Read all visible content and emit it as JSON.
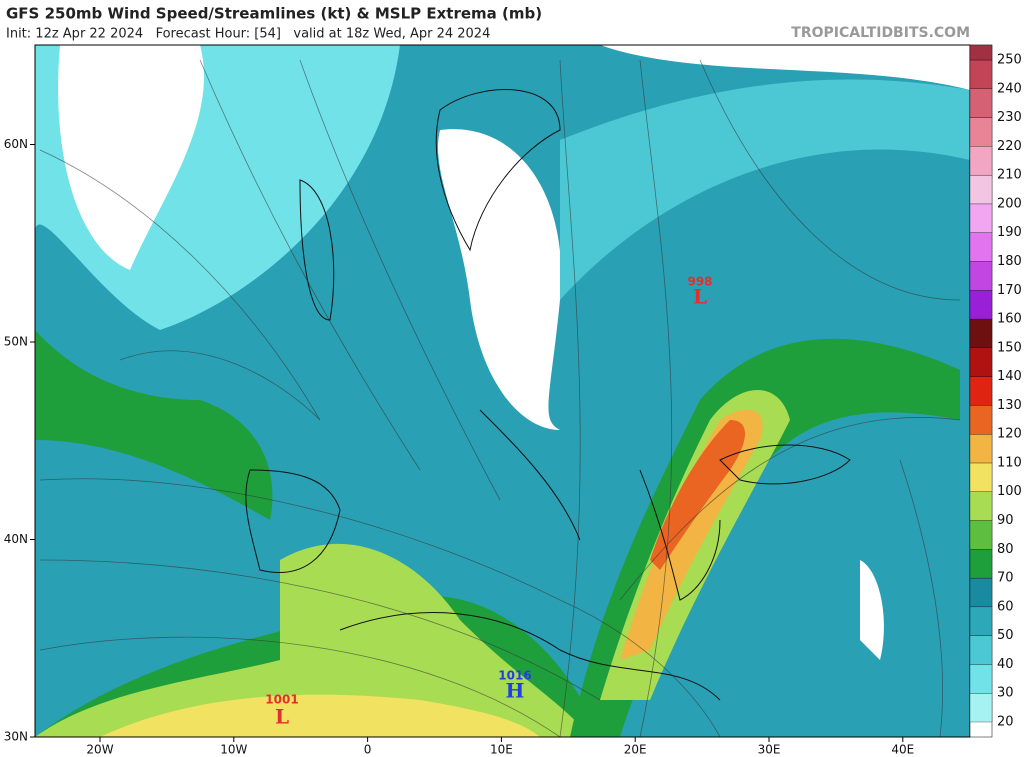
{
  "header": {
    "title": "GFS 250mb Wind Speed/Streamlines (kt) & MSLP Extrema (mb)",
    "subtitle": "Init: 12z Apr 22 2024   Forecast Hour: [54]   valid at 18z Wed, Apr 24 2024",
    "site": "TROPICALTIDBITS.COM"
  },
  "map": {
    "lat_ticks": [
      {
        "value": 60,
        "label": "60N"
      },
      {
        "value": 50,
        "label": "50N"
      },
      {
        "value": 40,
        "label": "40N"
      },
      {
        "value": 30,
        "label": "30N"
      }
    ],
    "lon_ticks": [
      {
        "value": -20,
        "label": "20W"
      },
      {
        "value": -10,
        "label": "10W"
      },
      0,
      {
        "value": 10,
        "label": "10E"
      },
      {
        "value": 20,
        "label": "20E"
      },
      {
        "value": 30,
        "label": "30E"
      },
      {
        "value": 40,
        "label": "40E"
      }
    ],
    "systems": [
      {
        "symbol": "L",
        "value": 998,
        "color": "#e03030"
      },
      {
        "symbol": "L",
        "value": 1001,
        "color": "#e03030"
      },
      {
        "symbol": "H",
        "value": 1016,
        "color": "#2040e0"
      }
    ]
  },
  "colorbar": {
    "levels": [
      20,
      30,
      40,
      50,
      60,
      70,
      80,
      90,
      100,
      110,
      120,
      130,
      140,
      150,
      160,
      170,
      180,
      190,
      200,
      210,
      220,
      230,
      240,
      250
    ],
    "colors": [
      "#a6f2f2",
      "#70e2e8",
      "#4cc8d4",
      "#2ca8b8",
      "#1a8aa0",
      "#1f9e3c",
      "#5cbf40",
      "#a8dc52",
      "#f2e262",
      "#f2b442",
      "#ea6422",
      "#e02412",
      "#b01212",
      "#6e1010",
      "#9a20d8",
      "#c246e2",
      "#e274f0",
      "#f0a6f0",
      "#f2c6e2",
      "#f2a6c2",
      "#e88496",
      "#d46274",
      "#c24456",
      "#a03042"
    ]
  }
}
